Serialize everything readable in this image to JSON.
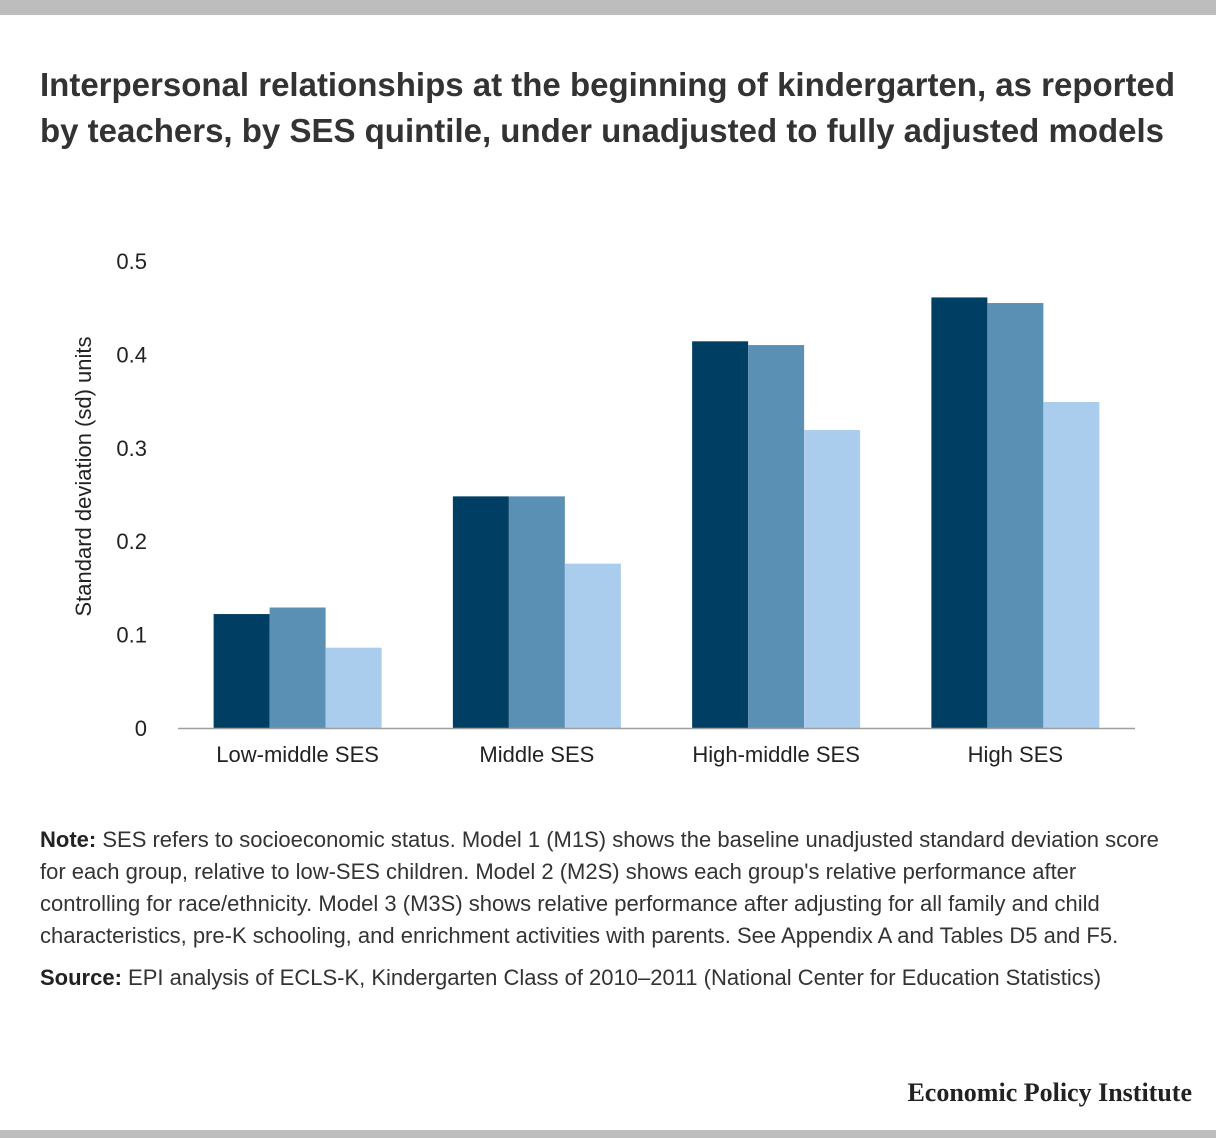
{
  "title": "Interpersonal relationships at the beginning of kindergarten, as reported by teachers, by SES quintile, under unadjusted to fully adjusted models",
  "note": {
    "label": "Note:",
    "text": "SES refers to socioeconomic status. Model 1 (M1S) shows the baseline unadjusted standard deviation score for each group, relative to low-SES children. Model 2 (M2S) shows each group's relative performance after controlling for race/ethnicity. Model 3 (M3S) shows relative performance after adjusting for all family and child characteristics, pre-K schooling, and enrichment activities with parents. See Appendix A and Tables D5 and F5."
  },
  "source": {
    "label": "Source:",
    "text": "EPI analysis of ECLS-K, Kindergarten Class of 2010–2011 (National Center for Education Statistics)"
  },
  "brand": "Economic Policy Institute",
  "chart_data": {
    "type": "bar",
    "title": "",
    "xlabel": "",
    "ylabel": "Standard deviation (sd) units",
    "ylim": [
      0,
      0.5
    ],
    "yticks": [
      0,
      0.1,
      0.2,
      0.3,
      0.4,
      0.5
    ],
    "ytick_labels": [
      "0",
      "0.1",
      "0.2",
      "0.3",
      "0.4",
      "0.5"
    ],
    "grid": false,
    "legend": "none",
    "categories": [
      "Low-middle SES",
      "Middle SES",
      "High-middle SES",
      "High SES"
    ],
    "series": [
      {
        "color": "#003f63",
        "values": [
          0.122,
          0.248,
          0.414,
          0.461
        ]
      },
      {
        "color": "#5b90b5",
        "values": [
          0.129,
          0.248,
          0.41,
          0.455
        ]
      },
      {
        "color": "#aacdee",
        "values": [
          0.086,
          0.176,
          0.319,
          0.349
        ]
      }
    ]
  }
}
